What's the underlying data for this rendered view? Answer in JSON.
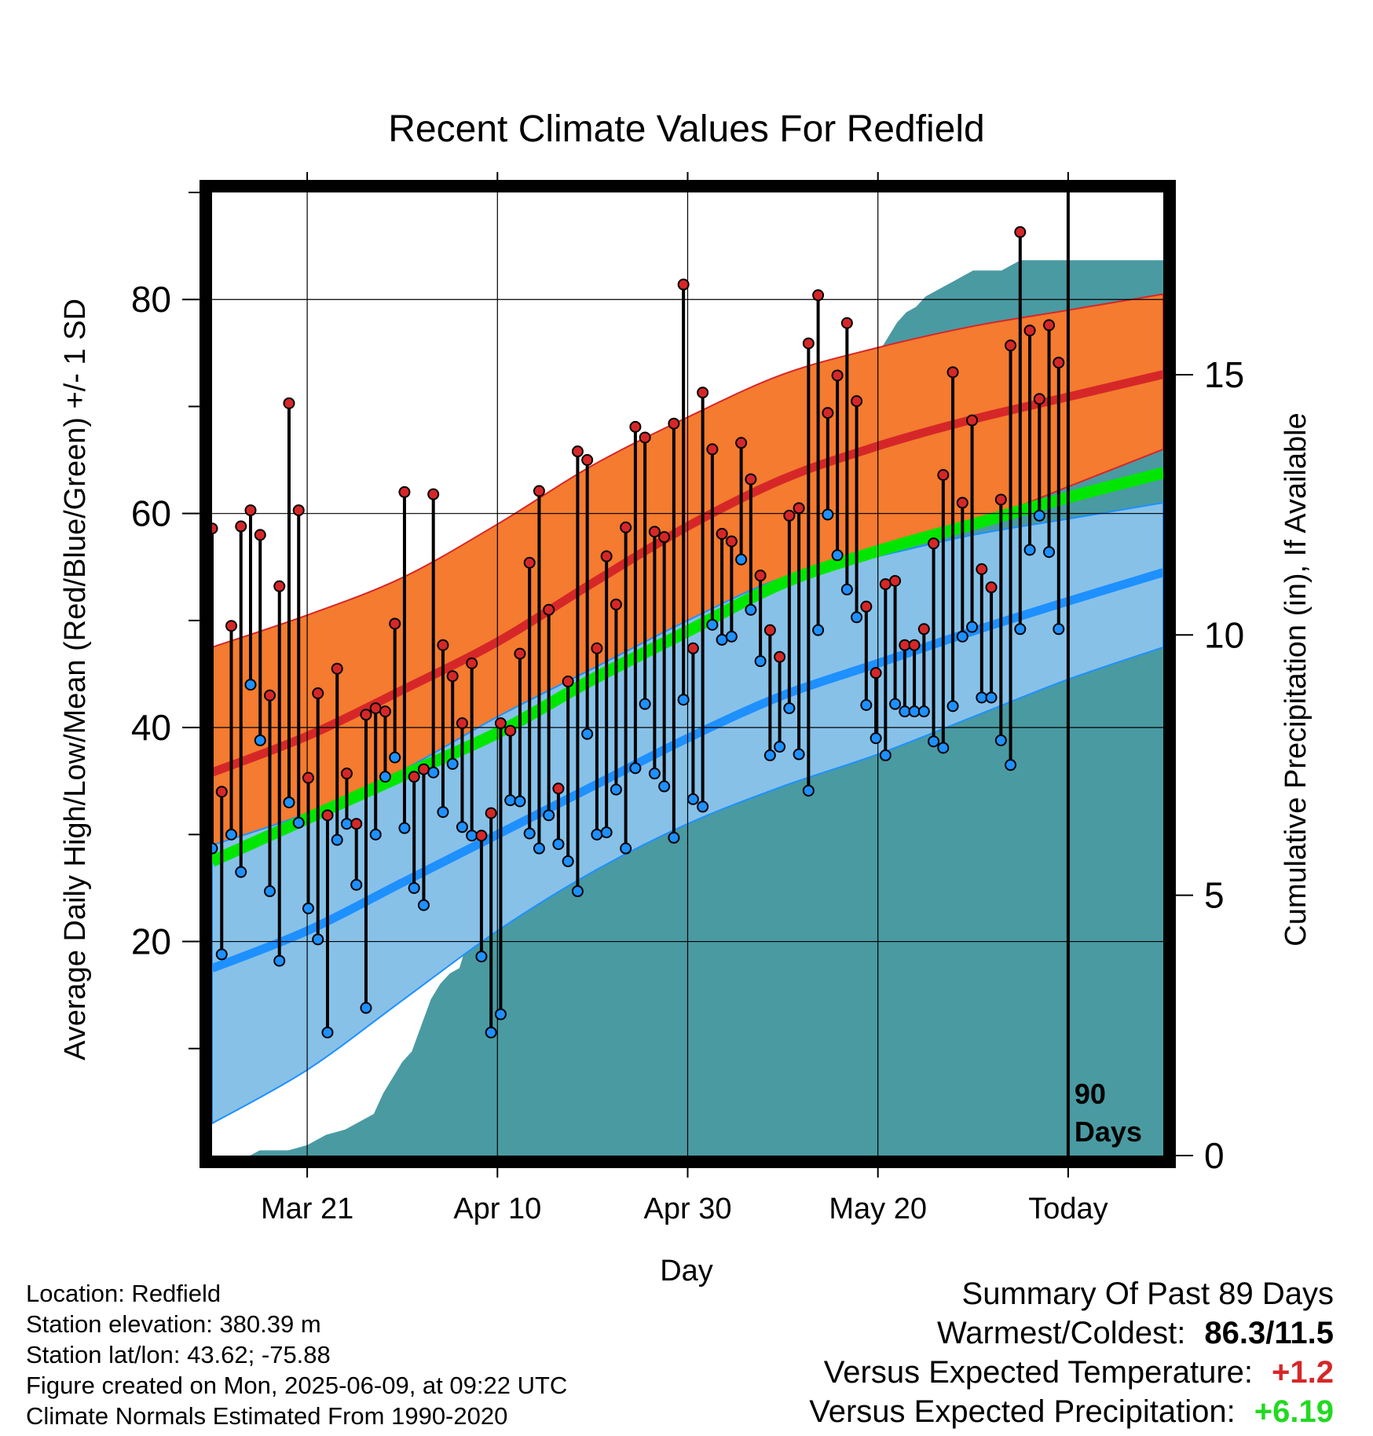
{
  "chart_data": {
    "type": "line",
    "title": "Recent Climate Values For Redfield",
    "xlabel": "Day",
    "ylabel": "Average Daily High/Low/Mean (Red/Blue/Green) +/- 1 SD",
    "y2label": "Cumulative Precipitation (in), If Available",
    "ylim": [
      0,
      90
    ],
    "y2lim": [
      0,
      18.5
    ],
    "xlim": [
      0,
      100
    ],
    "x_ticks": [
      {
        "x": 10,
        "label": "Mar 21"
      },
      {
        "x": 30,
        "label": "Apr 10"
      },
      {
        "x": 50,
        "label": "Apr 30"
      },
      {
        "x": 70,
        "label": "May 20"
      },
      {
        "x": 90,
        "label": "Today"
      }
    ],
    "y_ticks": [
      20,
      40,
      60,
      80
    ],
    "y2_ticks": [
      0,
      5,
      10,
      15
    ],
    "today_x": 90,
    "today_label_1": "90",
    "today_label_2": "Days",
    "grid": true,
    "normals": {
      "x": [
        0,
        10,
        20,
        30,
        40,
        50,
        60,
        70,
        80,
        90,
        100
      ],
      "high_mean": [
        35.8,
        39.2,
        43.5,
        48.0,
        53.5,
        58.8,
        63.2,
        66.3,
        68.8,
        70.9,
        73.0
      ],
      "high_upper": [
        47.5,
        50.5,
        54.0,
        59.0,
        64.5,
        69.0,
        73.0,
        75.5,
        77.5,
        79.0,
        80.5
      ],
      "high_lower": [
        25.5,
        29.0,
        34.0,
        38.5,
        43.5,
        48.0,
        53.0,
        56.0,
        59.0,
        62.5,
        66.0
      ],
      "mean_mean": [
        27.5,
        31.5,
        35.5,
        39.5,
        44.5,
        49.0,
        53.5,
        56.5,
        59.0,
        61.5,
        63.8
      ],
      "low_mean": [
        17.5,
        21.0,
        25.5,
        30.0,
        34.5,
        39.0,
        43.0,
        46.0,
        49.0,
        51.8,
        54.5
      ],
      "low_upper": [
        29.0,
        32.0,
        36.0,
        41.0,
        45.5,
        50.0,
        54.0,
        56.0,
        58.0,
        59.5,
        61.0
      ],
      "low_lower": [
        3.0,
        8.0,
        14.5,
        21.0,
        26.5,
        31.0,
        34.5,
        37.5,
        41.0,
        44.5,
        47.5
      ]
    },
    "series": [
      {
        "name": "High",
        "values": [
          58.6,
          34.0,
          49.5,
          58.8,
          60.3,
          58.0,
          43.0,
          53.2,
          70.3,
          60.3,
          35.3,
          43.2,
          31.8,
          45.5,
          35.7,
          31.0,
          41.2,
          41.8,
          41.5,
          49.7,
          62.0,
          35.4,
          36.1,
          61.8,
          47.7,
          44.8,
          40.4,
          46.0,
          29.9,
          32.0,
          40.4,
          39.7,
          46.9,
          55.4,
          62.1,
          51.0,
          34.3,
          44.3,
          65.8,
          65.0,
          47.4,
          56.0,
          51.5,
          58.7,
          68.1,
          67.1,
          58.3,
          57.8,
          68.4,
          81.4,
          47.4,
          71.3,
          66.0,
          58.1,
          57.4,
          66.6,
          63.2,
          54.2,
          49.1,
          46.6,
          59.8,
          60.5,
          75.9,
          80.4,
          69.4,
          72.9,
          77.8,
          70.5,
          51.3,
          45.1,
          53.4,
          53.7,
          47.7,
          47.7,
          49.2,
          57.2,
          63.6,
          73.2,
          61.0,
          68.7,
          54.8,
          53.1,
          61.3,
          75.7,
          86.3,
          77.1,
          70.7,
          77.6,
          74.1
        ]
      },
      {
        "name": "Low",
        "values": [
          28.7,
          18.8,
          30.0,
          26.5,
          44.0,
          38.8,
          24.7,
          18.2,
          33.0,
          31.1,
          23.1,
          20.2,
          11.5,
          29.5,
          31.0,
          25.3,
          13.8,
          30.0,
          35.4,
          37.2,
          30.6,
          25.0,
          23.4,
          35.8,
          32.1,
          36.6,
          30.7,
          29.9,
          18.6,
          11.5,
          13.2,
          33.2,
          33.1,
          30.1,
          28.7,
          31.8,
          29.1,
          27.5,
          24.7,
          39.4,
          30.0,
          30.2,
          34.2,
          28.7,
          36.2,
          42.2,
          35.7,
          34.5,
          29.7,
          42.6,
          33.3,
          32.6,
          49.6,
          48.2,
          48.5,
          55.7,
          51.0,
          46.2,
          37.4,
          38.2,
          41.8,
          37.5,
          34.1,
          49.1,
          59.9,
          56.1,
          52.9,
          50.3,
          42.1,
          39.0,
          37.4,
          42.2,
          41.5,
          41.5,
          41.5,
          38.7,
          38.1,
          42.0,
          48.5,
          49.4,
          42.8,
          42.8,
          38.8,
          36.5,
          49.2,
          56.6,
          59.8,
          56.4,
          49.2
        ]
      },
      {
        "name": "Cumulative Precipitation",
        "values": [
          0.0,
          0.0,
          0.0,
          0.0,
          0.0,
          0.1,
          0.1,
          0.1,
          0.1,
          0.15,
          0.2,
          0.3,
          0.4,
          0.45,
          0.5,
          0.6,
          0.7,
          0.8,
          1.2,
          1.5,
          1.8,
          2.0,
          2.5,
          3.0,
          3.3,
          3.5,
          3.6,
          4.2,
          4.5,
          4.8,
          5.0,
          5.1,
          5.2,
          5.3,
          5.6,
          5.8,
          6.0,
          6.1,
          6.5,
          7.0,
          7.3,
          7.6,
          7.8,
          8.0,
          8.3,
          8.8,
          9.0,
          9.2,
          9.5,
          9.7,
          9.9,
          10.2,
          10.6,
          11.0,
          11.5,
          11.8,
          12.2,
          12.5,
          12.8,
          13.1,
          13.3,
          13.3,
          13.3,
          13.3,
          13.5,
          14.0,
          14.5,
          15.0,
          15.2,
          15.3,
          15.4,
          15.7,
          16.0,
          16.2,
          16.3,
          16.5,
          16.6,
          16.7,
          16.8,
          16.9,
          17.0,
          17.0,
          17.0,
          17.0,
          17.1,
          17.2,
          17.2,
          17.2,
          17.2,
          17.2,
          17.2,
          17.2,
          17.2,
          17.2,
          17.2,
          17.2,
          17.2,
          17.2,
          17.2,
          17.2,
          17.2
        ]
      }
    ]
  },
  "info": {
    "location": "Location: Redfield",
    "elevation": "Station elevation: 380.39 m",
    "latlon": "Station lat/lon: 43.62; -75.88",
    "created": "Figure created on Mon, 2025-06-09, at 09:22 UTC",
    "normals": "Climate Normals Estimated From 1990-2020"
  },
  "summary": {
    "title": "Summary Of Past 89 Days",
    "warmest_coldest_label": "Warmest/Coldest:",
    "warmest_coldest_value": "86.3/11.5",
    "temp_label": "Versus Expected Temperature:",
    "temp_value": "+1.2",
    "precip_label": "Versus Expected Precipitation:",
    "precip_value": "+6.19",
    "temp_color": "#d62728",
    "precip_color": "#22d922"
  },
  "colors": {
    "high_band": "#f47b2f",
    "high_line": "#d62728",
    "low_band": "#87c1e8",
    "low_line": "#1e90ff",
    "mean_line": "#00e600",
    "precip": "#4a9aa2"
  }
}
